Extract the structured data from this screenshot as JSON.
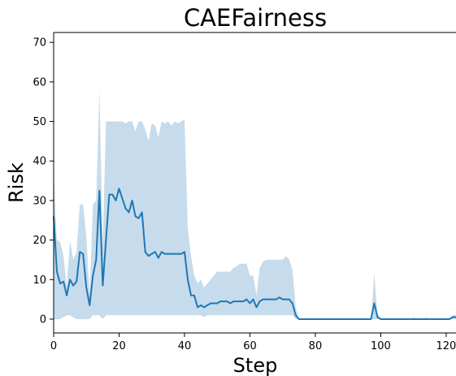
{
  "chart_data": {
    "type": "line",
    "title": "CAEFairness",
    "xlabel": "Step",
    "ylabel": "Risk",
    "xlim": [
      0,
      123
    ],
    "ylim": [
      -3.5,
      72.5
    ],
    "xticks": [
      0,
      20,
      40,
      60,
      80,
      100,
      120
    ],
    "yticks": [
      0,
      10,
      20,
      30,
      40,
      50,
      60,
      70
    ],
    "grid": false,
    "colors": {
      "line": "#1f77b4",
      "band": "#c6dcec"
    },
    "series": [
      {
        "x": [
          0,
          1,
          2,
          3,
          4,
          5,
          6,
          7,
          8,
          9,
          10,
          11,
          12,
          13,
          14,
          15,
          16,
          17,
          18,
          19,
          20,
          21,
          22,
          23,
          24,
          25,
          26,
          27,
          28,
          29,
          30,
          31,
          32,
          33,
          34,
          35,
          36,
          37,
          38,
          39,
          40,
          41,
          42,
          43,
          44,
          45,
          46,
          47,
          48,
          49,
          50,
          51,
          52,
          53,
          54,
          55,
          56,
          57,
          58,
          59,
          60,
          61,
          62,
          63,
          64,
          65,
          66,
          67,
          68,
          69,
          70,
          71,
          72,
          73,
          74,
          75,
          76,
          77,
          78,
          79,
          80,
          81,
          82,
          83,
          84,
          85,
          86,
          87,
          88,
          89,
          90,
          91,
          92,
          93,
          94,
          95,
          96,
          97,
          98,
          99,
          100,
          101,
          102,
          103,
          104,
          105,
          106,
          107,
          108,
          109,
          110,
          111,
          112,
          113,
          114,
          115,
          116,
          117,
          118,
          119,
          120,
          121,
          122,
          123
        ],
        "y": [
          26,
          12,
          9,
          9.5,
          6,
          10,
          8.5,
          9.5,
          17,
          16.5,
          8,
          3.5,
          11,
          15,
          32.5,
          8.5,
          20,
          31.5,
          31.5,
          30,
          33,
          30.5,
          28,
          27,
          30,
          26,
          25.5,
          27,
          17,
          16,
          16.5,
          17,
          15.5,
          17,
          16.5,
          16.5,
          16.5,
          16.5,
          16.5,
          16.5,
          17,
          10,
          6,
          6,
          3,
          3.5,
          3,
          3.5,
          4,
          4,
          4,
          4.5,
          4.5,
          4.5,
          4,
          4.5,
          4.5,
          4.5,
          4.5,
          5,
          4,
          5,
          3,
          4.5,
          5,
          5,
          5,
          5,
          5,
          5.5,
          5,
          5,
          5,
          4,
          1,
          0,
          0,
          0,
          0,
          0,
          0,
          0,
          0,
          0,
          0,
          0,
          0,
          0,
          0,
          0,
          0,
          0,
          0,
          0,
          0,
          0,
          0,
          0,
          4,
          0.5,
          0,
          0,
          0,
          0,
          0,
          0,
          0,
          0,
          0,
          0,
          0,
          0,
          0,
          0,
          0,
          0,
          0,
          0,
          0,
          0,
          0,
          0,
          0.5,
          0.5
        ],
        "lower": [
          0,
          0,
          0,
          0.5,
          1,
          1,
          0.5,
          0,
          0,
          0,
          0,
          0,
          1,
          1,
          1,
          0,
          1,
          1,
          1,
          1,
          1,
          1,
          1,
          1,
          1,
          1,
          1,
          1,
          1,
          1,
          1,
          1,
          1,
          1,
          1,
          1,
          1,
          1,
          1,
          1,
          1,
          1,
          1,
          1,
          1,
          1,
          0.5,
          1,
          1,
          1,
          1,
          1,
          1,
          1,
          1,
          1,
          1,
          1,
          1,
          1,
          1,
          1,
          1,
          1,
          1,
          1,
          1,
          1,
          1,
          1,
          1,
          1,
          1,
          1,
          0,
          0,
          0,
          0,
          0,
          0,
          0,
          0,
          0,
          0,
          0,
          0,
          0,
          0,
          0,
          0,
          0,
          0,
          0,
          0,
          0,
          0,
          0,
          0,
          0,
          0,
          0,
          0,
          0,
          0,
          0,
          0,
          0,
          0,
          0,
          0,
          0,
          0,
          0,
          0,
          0,
          0,
          0,
          0,
          0,
          0,
          0,
          0,
          0,
          0
        ],
        "upper": [
          37,
          20,
          19.5,
          16,
          8,
          20,
          15,
          17,
          29,
          29,
          21,
          6.5,
          29,
          30,
          58,
          19,
          50,
          50,
          50,
          50,
          50,
          50,
          49.5,
          50,
          50,
          47.5,
          50,
          50,
          48,
          45,
          49.5,
          49,
          46,
          50,
          49.5,
          50,
          49,
          50,
          49.5,
          50,
          50.5,
          23,
          16,
          11,
          9,
          10,
          8,
          9,
          10,
          11,
          12,
          12,
          12,
          12,
          12,
          13,
          13.5,
          14,
          14,
          14,
          11,
          11,
          6,
          13,
          14.5,
          15,
          15,
          15,
          15,
          15,
          15,
          16,
          15,
          12.5,
          3,
          0,
          0,
          0,
          0,
          0,
          0,
          0,
          0,
          0,
          0,
          0,
          0,
          0,
          0,
          0,
          0,
          0,
          0,
          0,
          0,
          0,
          0,
          0,
          11.5,
          1.5,
          0,
          0,
          0,
          0,
          0,
          0,
          0,
          0,
          0,
          0,
          0.5,
          0,
          0,
          0,
          0.5,
          0,
          0,
          0,
          0,
          0,
          0,
          0,
          1,
          1
        ]
      }
    ]
  }
}
